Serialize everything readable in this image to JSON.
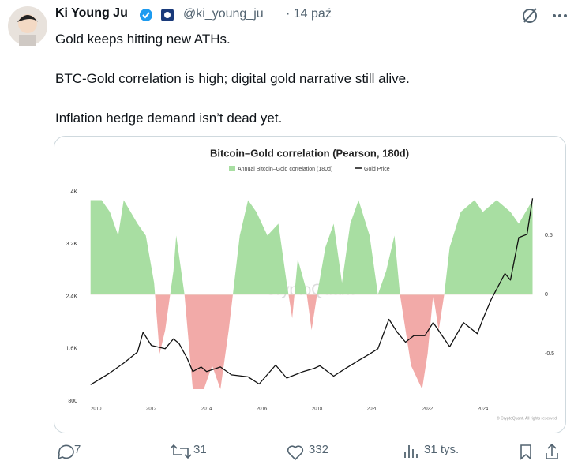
{
  "tweet": {
    "author": "Ki Young Ju",
    "handle": "@ki_young_ju",
    "date": "14 paź",
    "lines": [
      "Gold keeps hitting new ATHs.",
      "BTC-Gold correlation is high; digital gold narrative still alive.",
      "Inflation hedge demand isn’t dead yet."
    ],
    "replies": "7",
    "reposts": "31",
    "likes": "332",
    "views": "31 tys."
  },
  "chart_data": {
    "type": "line",
    "title": "Bitcoin–Gold correlation (Pearson, 180d)",
    "watermark": "CryptoQuant",
    "copyright": "© CryptoQuant. All rights reserved",
    "xlim": [
      2009.75,
      2025.9
    ],
    "xticks": [
      2010,
      2012,
      2014,
      2016,
      2018,
      2020,
      2022,
      2024
    ],
    "ylim": [
      800,
      4000
    ],
    "yticks": [
      800,
      {
        "value": 1600,
        "label": "1.6K"
      },
      {
        "value": 2400,
        "label": "2.4K"
      },
      {
        "value": 3200,
        "label": "3.2K"
      },
      {
        "value": 4000,
        "label": "4K"
      }
    ],
    "y2lim": [
      -0.9,
      0.87
    ],
    "y2ticks": [
      -0.5,
      0,
      0.5
    ],
    "series": [
      {
        "name": "Annual Bitcoin–Gold correlation (180d)",
        "axis": "y2",
        "kind": "area",
        "color": "#a8dea2",
        "negative_color": "#f2aaa8",
        "x": [
          2009.8,
          2010.2,
          2010.5,
          2010.8,
          2011.0,
          2011.5,
          2011.8,
          2012.1,
          2012.3,
          2012.5,
          2012.8,
          2012.9,
          2013.2,
          2013.5,
          2013.9,
          2014.2,
          2014.5,
          2014.8,
          2015.2,
          2015.5,
          2015.8,
          2016.2,
          2016.6,
          2016.9,
          2017.1,
          2017.3,
          2017.6,
          2017.8,
          2018.0,
          2018.3,
          2018.6,
          2018.9,
          2019.2,
          2019.5,
          2019.9,
          2020.2,
          2020.5,
          2020.8,
          2021.0,
          2021.4,
          2021.8,
          2022.0,
          2022.2,
          2022.4,
          2022.6,
          2022.8,
          2023.2,
          2023.7,
          2024.0,
          2024.5,
          2025.0,
          2025.3,
          2025.8
        ],
        "values": [
          0.8,
          0.8,
          0.7,
          0.5,
          0.8,
          0.6,
          0.5,
          0.1,
          -0.5,
          -0.3,
          0.2,
          0.5,
          0.0,
          -0.8,
          -0.8,
          -0.6,
          -0.8,
          -0.3,
          0.5,
          0.8,
          0.7,
          0.5,
          0.6,
          0.1,
          -0.2,
          0.3,
          0.05,
          -0.3,
          0.0,
          0.4,
          0.6,
          0.1,
          0.6,
          0.8,
          0.5,
          0.0,
          0.2,
          0.5,
          0.0,
          -0.6,
          -0.8,
          -0.5,
          0.0,
          -0.3,
          0.0,
          0.4,
          0.7,
          0.8,
          0.7,
          0.8,
          0.7,
          0.6,
          0.8
        ]
      },
      {
        "name": "Gold Price",
        "kind": "line",
        "color": "#111111",
        "x": [
          2009.8,
          2010.0,
          2010.5,
          2011.0,
          2011.5,
          2011.7,
          2012.0,
          2012.5,
          2012.8,
          2013.0,
          2013.3,
          2013.5,
          2013.8,
          2014.0,
          2014.5,
          2014.9,
          2015.5,
          2015.9,
          2016.5,
          2016.9,
          2017.5,
          2017.9,
          2018.1,
          2018.6,
          2019.0,
          2019.5,
          2019.9,
          2020.2,
          2020.6,
          2020.9,
          2021.2,
          2021.5,
          2021.9,
          2022.2,
          2022.8,
          2023.3,
          2023.8,
          2024.0,
          2024.3,
          2024.8,
          2025.0,
          2025.3,
          2025.6,
          2025.8
        ],
        "values": [
          1050,
          1100,
          1230,
          1380,
          1550,
          1850,
          1650,
          1600,
          1750,
          1680,
          1450,
          1250,
          1320,
          1250,
          1320,
          1200,
          1170,
          1060,
          1350,
          1150,
          1250,
          1300,
          1340,
          1180,
          1290,
          1420,
          1520,
          1600,
          2050,
          1850,
          1700,
          1800,
          1800,
          2000,
          1630,
          2000,
          1830,
          2050,
          2350,
          2750,
          2650,
          3300,
          3350,
          3900
        ]
      }
    ]
  }
}
